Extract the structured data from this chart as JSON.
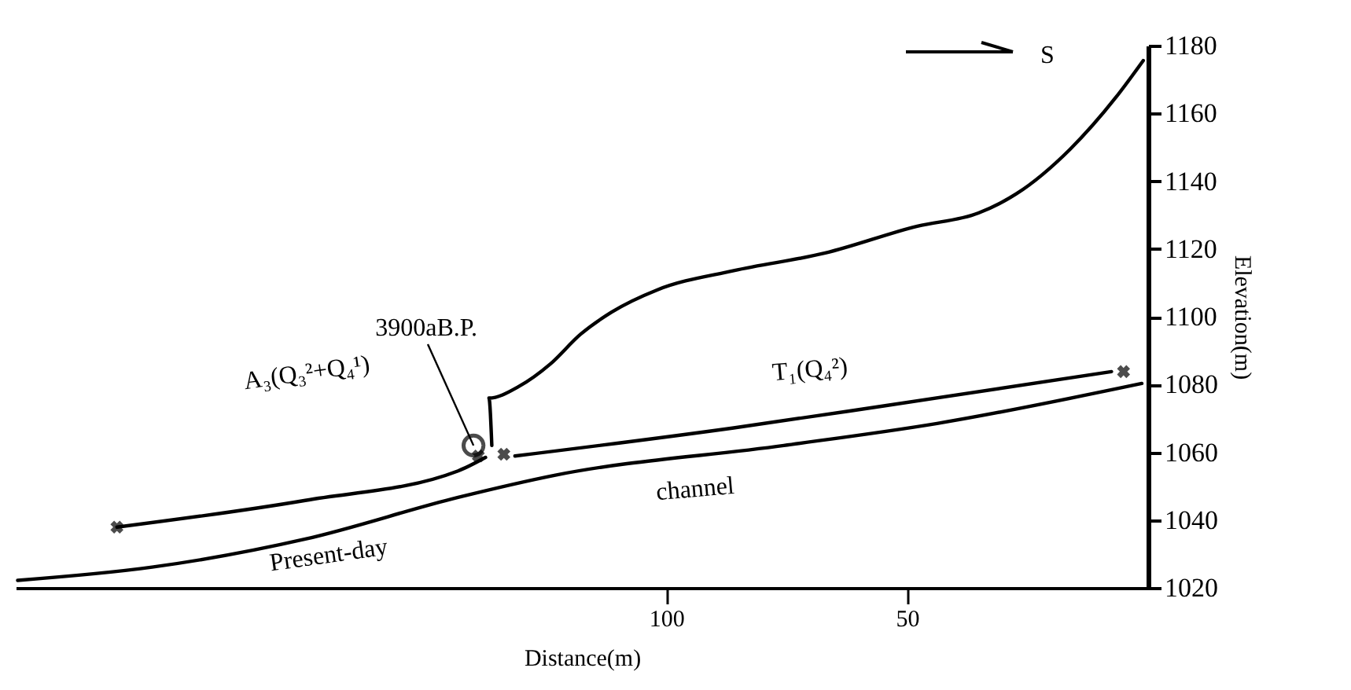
{
  "chart_data": {
    "type": "line",
    "xlabel": "Distance(m)",
    "ylabel": "Elevation(m)",
    "xlim": [
      235,
      0
    ],
    "xticks": [
      100,
      50
    ],
    "ylim": [
      1020,
      1180
    ],
    "yticks": [
      1020,
      1040,
      1060,
      1080,
      1100,
      1120,
      1140,
      1160,
      1180
    ],
    "grid": false,
    "series": [
      {
        "color": "#000000",
        "x": [
          136.2,
          136.8,
          130.5,
          124.1,
          117.8,
          111.4,
          101.9,
          86.0,
          67.0,
          47.9,
          35.2,
          27.3,
          16.2,
          6.7,
          1.0
        ],
        "values": [
          1062.0,
          1076.0,
          1079.5,
          1086.0,
          1094.8,
          1101.3,
          1107.9,
          1113.6,
          1118.8,
          1126.7,
          1130.6,
          1136.3,
          1149.4,
          1164.7,
          1175.6
        ]
      },
      {
        "color": "#000000",
        "x": [
          131.4,
          86.0,
          54.3,
          7.6
        ],
        "values": [
          1058.9,
          1067.2,
          1073.8,
          1083.8
        ]
      },
      {
        "color": "#000000",
        "x": [
          214.0,
          174.9,
          143.2,
          137.5
        ],
        "values": [
          1037.9,
          1045.8,
          1054.5,
          1058.5
        ]
      },
      {
        "color": "#000000",
        "x": [
          234.6,
          206.7,
          174.9,
          143.2,
          123.2,
          75.6,
          43.8,
          1.3
        ],
        "values": [
          1022.2,
          1026.1,
          1034.4,
          1046.7,
          1053.2,
          1062.0,
          1068.5,
          1080.3
        ]
      },
      {
        "type": "scatter",
        "marker": "cross",
        "color": "#000000",
        "x": [
          214.0,
          139.0,
          133.7,
          5.1
        ],
        "values": [
          1037.9,
          1058.9,
          1059.4,
          1083.8
        ]
      },
      {
        "type": "scatter",
        "marker": "circle",
        "color": "#000000",
        "x": [
          140.0
        ],
        "values": [
          1062.0
        ]
      }
    ],
    "annotations": [
      {
        "text": "3900aB.P.",
        "x": 140.0,
        "y": 1062.0
      },
      "A₃(Q₃²+Q₄¹)",
      "T₁(Q₄²)",
      "Present-day",
      "channel",
      "S"
    ]
  }
}
